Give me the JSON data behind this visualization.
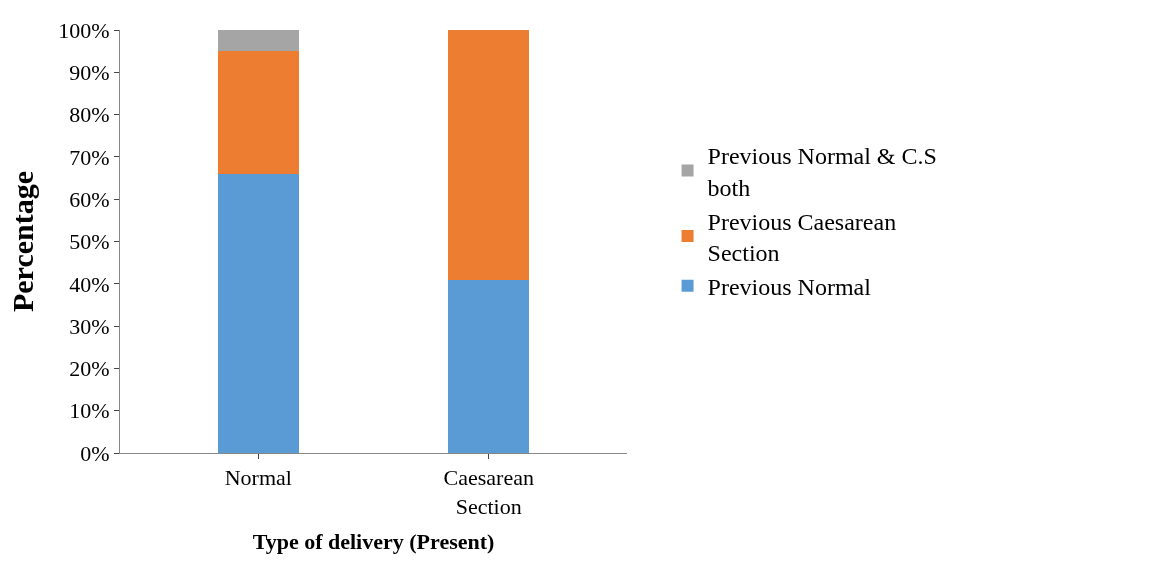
{
  "chart_data": {
    "type": "bar",
    "stacked": true,
    "xlabel": "Type of delivery (Present)",
    "ylabel": "Percentage",
    "categories": [
      "Normal",
      "Caesarean Section"
    ],
    "series": [
      {
        "name": "Previous Normal",
        "color": "#5b9bd5",
        "values": [
          66,
          41
        ]
      },
      {
        "name": "Previous Caesarean Section",
        "color": "#ed7d31",
        "values": [
          29,
          59
        ]
      },
      {
        "name": "Previous Normal & C.S both",
        "color": "#a5a5a5",
        "values": [
          5,
          0
        ]
      }
    ],
    "ylim": [
      0,
      100
    ],
    "yticks": [
      {
        "value": 0,
        "label": "0%"
      },
      {
        "value": 10,
        "label": "10%"
      },
      {
        "value": 20,
        "label": "20%"
      },
      {
        "value": 30,
        "label": "30%"
      },
      {
        "value": 40,
        "label": "40%"
      },
      {
        "value": 50,
        "label": "50%"
      },
      {
        "value": 60,
        "label": "60%"
      },
      {
        "value": 70,
        "label": "70%"
      },
      {
        "value": 80,
        "label": "80%"
      },
      {
        "value": 90,
        "label": "90%"
      },
      {
        "value": 100,
        "label": "100%"
      }
    ],
    "legend": "right"
  }
}
